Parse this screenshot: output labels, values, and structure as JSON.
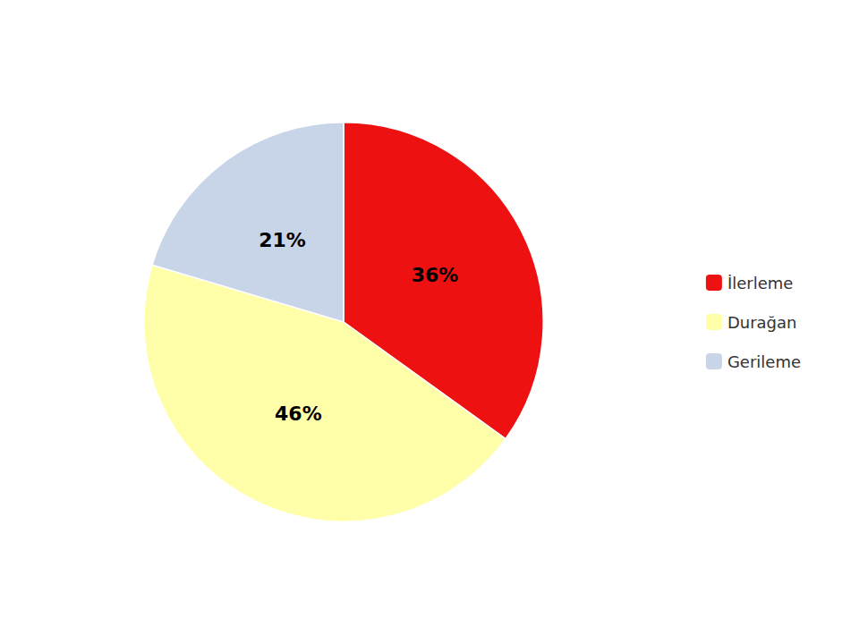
{
  "chart_data": {
    "type": "pie",
    "categories": [
      "İlerleme",
      "Durağan",
      "Gerileme"
    ],
    "values": [
      36,
      46,
      21
    ],
    "value_labels": [
      "36%",
      "46%",
      "21%"
    ],
    "colors": [
      "#ee1111",
      "#ffffaa",
      "#c8d4e8"
    ],
    "data_labels": true,
    "legend": "right"
  }
}
